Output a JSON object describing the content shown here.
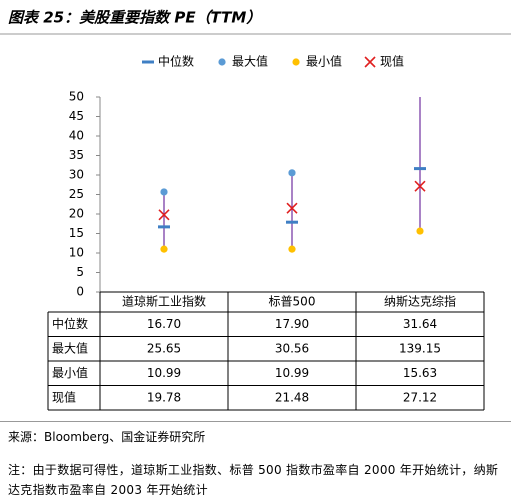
{
  "chart_data": {
    "type": "range",
    "title": "图表 25：美股重要指数 PE（TTM）",
    "categories": [
      "道琼斯工业指数",
      "标普500",
      "纳斯达克综指"
    ],
    "series": [
      {
        "name": "中位数",
        "color": "#3f7fc4",
        "marker": "dash",
        "values": [
          16.7,
          17.9,
          31.64
        ],
        "value_labels": [
          "16.70",
          "17.90",
          "31.64"
        ]
      },
      {
        "name": "最大值",
        "color": "#5b9bd5",
        "marker": "circle",
        "values": [
          25.65,
          30.56,
          139.15
        ],
        "value_labels": [
          "25.65",
          "30.56",
          "139.15"
        ]
      },
      {
        "name": "最小值",
        "color": "#ffc000",
        "marker": "circle",
        "values": [
          10.99,
          10.99,
          15.63
        ],
        "value_labels": [
          "10.99",
          "10.99",
          "15.63"
        ]
      },
      {
        "name": "现值",
        "color": "#e02020",
        "marker": "cross",
        "values": [
          19.78,
          21.48,
          27.12
        ],
        "value_labels": [
          "19.78",
          "21.48",
          "27.12"
        ]
      }
    ],
    "range_color": "#7030a0",
    "ylim": [
      0,
      50
    ],
    "yticks": [
      0,
      5,
      10,
      15,
      20,
      25,
      30,
      35,
      40,
      45,
      50
    ]
  },
  "source": "来源：Bloomberg、国金证券研究所",
  "note": "注：由于数据可得性，道琼斯工业指数、标普 500 指数市盈率自 2000 年开始统计，纳斯达克指数市盈率自 2003 年开始统计"
}
